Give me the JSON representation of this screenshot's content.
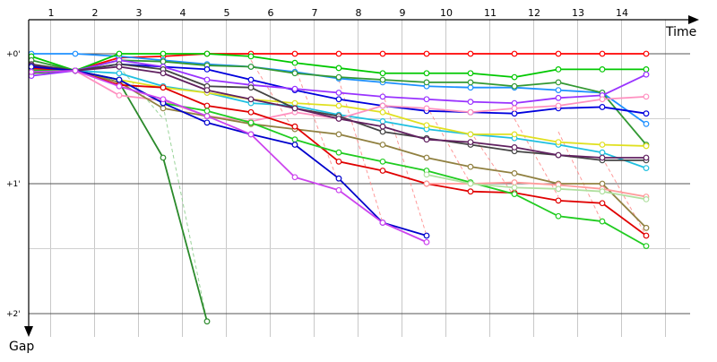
{
  "chart_data": {
    "type": "line",
    "x_axis_label": "Time",
    "y_axis_label": "Gap",
    "x_ticks": [
      "1",
      "2",
      "3",
      "4",
      "5",
      "6",
      "7",
      "8",
      "9",
      "10",
      "11",
      "12",
      "13",
      "14"
    ],
    "y_ticks": [
      {
        "value": 0,
        "label": "+0'"
      },
      {
        "value": 1,
        "label": "+1'"
      },
      {
        "value": 2,
        "label": "+2'"
      }
    ],
    "ylim": [
      0,
      2.2
    ],
    "grid": true,
    "series": [
      {
        "color": "#ff0000",
        "x": [
          1,
          2,
          3,
          4,
          5,
          6,
          7,
          8,
          9,
          10,
          11,
          12,
          13,
          14,
          15
        ],
        "y": [
          0.1,
          0.13,
          0.03,
          0.02,
          0.0,
          0.0,
          0.0,
          0.0,
          0.0,
          0.0,
          0.0,
          0.0,
          0.0,
          0.0,
          0.0
        ]
      },
      {
        "color": "#1e90ff",
        "x": [
          1,
          2,
          3,
          4,
          5,
          6,
          7,
          8,
          9,
          10,
          11,
          12,
          13,
          14,
          15
        ],
        "y": [
          0.0,
          0.0,
          0.02,
          0.05,
          0.08,
          0.1,
          0.14,
          0.19,
          0.22,
          0.25,
          0.26,
          0.26,
          0.28,
          0.3,
          0.54
        ]
      },
      {
        "color": "#00c800",
        "x": [
          1,
          2,
          3,
          4,
          5,
          6,
          7,
          8,
          9,
          10,
          11,
          12,
          13,
          14,
          15
        ],
        "y": [
          0.02,
          0.13,
          0.0,
          0.0,
          0.0,
          0.02,
          0.07,
          0.11,
          0.15,
          0.15,
          0.15,
          0.18,
          0.12,
          0.12,
          0.12
        ]
      },
      {
        "color": "#339933",
        "x": [
          1,
          2,
          3,
          4,
          5,
          6,
          7,
          8,
          9,
          10,
          11,
          12,
          13,
          14,
          15
        ],
        "y": [
          0.05,
          0.13,
          0.05,
          0.06,
          0.09,
          0.1,
          0.15,
          0.18,
          0.2,
          0.22,
          0.22,
          0.25,
          0.22,
          0.3,
          0.7
        ]
      },
      {
        "color": "#2b8a2b",
        "x": [
          1,
          2,
          3,
          4,
          5
        ],
        "y": [
          0.15,
          0.13,
          0.22,
          0.8,
          2.06
        ]
      },
      {
        "color": "#0000dd",
        "x": [
          1,
          2,
          3,
          4,
          5,
          6,
          7,
          8,
          9,
          10,
          11,
          12,
          13,
          14,
          15
        ],
        "y": [
          0.1,
          0.13,
          0.08,
          0.1,
          0.12,
          0.2,
          0.28,
          0.35,
          0.4,
          0.44,
          0.45,
          0.46,
          0.42,
          0.41,
          0.46
        ]
      },
      {
        "color": "#9933ff",
        "x": [
          1,
          2,
          3,
          4,
          5,
          6,
          7,
          8,
          9,
          10,
          11,
          12,
          13,
          14,
          15
        ],
        "y": [
          0.17,
          0.13,
          0.05,
          0.1,
          0.2,
          0.24,
          0.27,
          0.3,
          0.33,
          0.35,
          0.37,
          0.38,
          0.34,
          0.32,
          0.16
        ]
      },
      {
        "color": "#20c0e0",
        "x": [
          1,
          2,
          3,
          4,
          5,
          6,
          7,
          8,
          9,
          10,
          11,
          12,
          13,
          14,
          15
        ],
        "y": [
          0.12,
          0.13,
          0.15,
          0.25,
          0.3,
          0.38,
          0.4,
          0.47,
          0.52,
          0.58,
          0.62,
          0.65,
          0.7,
          0.76,
          0.88
        ]
      },
      {
        "color": "#e0e020",
        "x": [
          1,
          2,
          3,
          4,
          5,
          6,
          7,
          8,
          9,
          10,
          11,
          12,
          13,
          14,
          15
        ],
        "y": [
          0.13,
          0.13,
          0.2,
          0.26,
          0.3,
          0.35,
          0.38,
          0.4,
          0.45,
          0.55,
          0.62,
          0.62,
          0.68,
          0.7,
          0.71
        ]
      },
      {
        "color": "#ff90c0",
        "x": [
          1,
          2,
          3,
          4,
          5,
          6,
          7,
          8,
          9,
          10,
          11,
          12,
          13,
          14,
          15
        ],
        "y": [
          0.12,
          0.13,
          0.32,
          0.36,
          0.48,
          0.52,
          0.45,
          0.5,
          0.4,
          0.42,
          0.45,
          0.42,
          0.4,
          0.35,
          0.33
        ]
      },
      {
        "color": "#444444",
        "x": [
          1,
          2,
          3,
          4,
          5,
          6,
          7,
          8,
          9,
          10,
          11,
          12,
          13,
          14,
          15
        ],
        "y": [
          0.08,
          0.13,
          0.08,
          0.12,
          0.25,
          0.26,
          0.42,
          0.48,
          0.6,
          0.65,
          0.7,
          0.75,
          0.78,
          0.82,
          0.82
        ]
      },
      {
        "color": "#602060",
        "x": [
          1,
          2,
          3,
          4,
          5,
          6,
          7,
          8,
          9,
          10,
          11,
          12,
          13,
          14,
          15
        ],
        "y": [
          0.09,
          0.13,
          0.1,
          0.15,
          0.28,
          0.35,
          0.42,
          0.5,
          0.56,
          0.66,
          0.68,
          0.72,
          0.78,
          0.8,
          0.8
        ]
      },
      {
        "color": "#908040",
        "x": [
          1,
          2,
          3,
          4,
          5,
          6,
          7,
          8,
          9,
          10,
          11,
          12,
          13,
          14,
          15
        ],
        "y": [
          0.12,
          0.13,
          0.22,
          0.42,
          0.48,
          0.54,
          0.58,
          0.62,
          0.7,
          0.8,
          0.87,
          0.92,
          1.0,
          1.0,
          1.34
        ]
      },
      {
        "color": "#e00000",
        "x": [
          1,
          2,
          3,
          4,
          5,
          6,
          7,
          8,
          9,
          10,
          11,
          12,
          13,
          14,
          15
        ],
        "y": [
          0.11,
          0.13,
          0.24,
          0.26,
          0.4,
          0.45,
          0.56,
          0.83,
          0.9,
          1.0,
          1.06,
          1.07,
          1.13,
          1.15,
          1.4
        ]
      },
      {
        "color": "#20cc20",
        "x": [
          1,
          2,
          3,
          4,
          5,
          6,
          7,
          8,
          9,
          10,
          11,
          12,
          13,
          14,
          15
        ],
        "y": [
          0.13,
          0.13,
          0.2,
          0.38,
          0.44,
          0.53,
          0.66,
          0.76,
          0.83,
          0.9,
          0.99,
          1.08,
          1.25,
          1.29,
          1.48
        ]
      },
      {
        "color": "#0000cc",
        "x": [
          1,
          2,
          3,
          4,
          5,
          6,
          7,
          8,
          9,
          10
        ],
        "y": [
          0.1,
          0.13,
          0.2,
          0.38,
          0.53,
          0.62,
          0.7,
          0.96,
          1.3,
          1.4
        ]
      },
      {
        "color": "#cc44ee",
        "x": [
          1,
          2,
          3,
          4,
          5,
          6,
          7,
          8,
          9,
          10
        ],
        "y": [
          0.14,
          0.13,
          0.25,
          0.35,
          0.48,
          0.62,
          0.95,
          1.05,
          1.3,
          1.45
        ]
      },
      {
        "color": "#ff9a9a",
        "x": [
          10,
          11,
          12,
          13,
          14,
          15
        ],
        "y": [
          1.0,
          1.0,
          0.99,
          1.01,
          1.04,
          1.1
        ]
      },
      {
        "color": "#b0e0a0",
        "x": [
          10,
          11,
          12,
          13,
          14,
          15
        ],
        "y": [
          0.93,
          1.0,
          1.03,
          1.04,
          1.06,
          1.12
        ]
      }
    ],
    "pit_stops": [
      {
        "color": "#88cc88",
        "from": [
          3,
          0.1
        ],
        "to": [
          4,
          0.5
        ]
      },
      {
        "color": "#88cc88",
        "from": [
          4,
          0.4
        ],
        "to": [
          5,
          2.06
        ]
      },
      {
        "color": "#ff8888",
        "from": [
          6,
          0.05
        ],
        "to": [
          7,
          0.6
        ]
      },
      {
        "color": "#ff8888",
        "from": [
          7,
          0.1
        ],
        "to": [
          8,
          1.0
        ]
      },
      {
        "color": "#ff8888",
        "from": [
          8,
          0.2
        ],
        "to": [
          9,
          1.3
        ]
      },
      {
        "color": "#ff8888",
        "from": [
          9,
          0.3
        ],
        "to": [
          10,
          1.4
        ]
      },
      {
        "color": "#ff8888",
        "from": [
          10,
          0.4
        ],
        "to": [
          11,
          1.0
        ]
      },
      {
        "color": "#ff8888",
        "from": [
          11,
          0.6
        ],
        "to": [
          12,
          1.1
        ]
      },
      {
        "color": "#ff8888",
        "from": [
          12,
          0.5
        ],
        "to": [
          13,
          1.1
        ]
      },
      {
        "color": "#ff8888",
        "from": [
          13,
          0.6
        ],
        "to": [
          14,
          1.3
        ]
      },
      {
        "color": "#ff8888",
        "from": [
          14,
          0.8
        ],
        "to": [
          15,
          1.4
        ]
      }
    ]
  }
}
